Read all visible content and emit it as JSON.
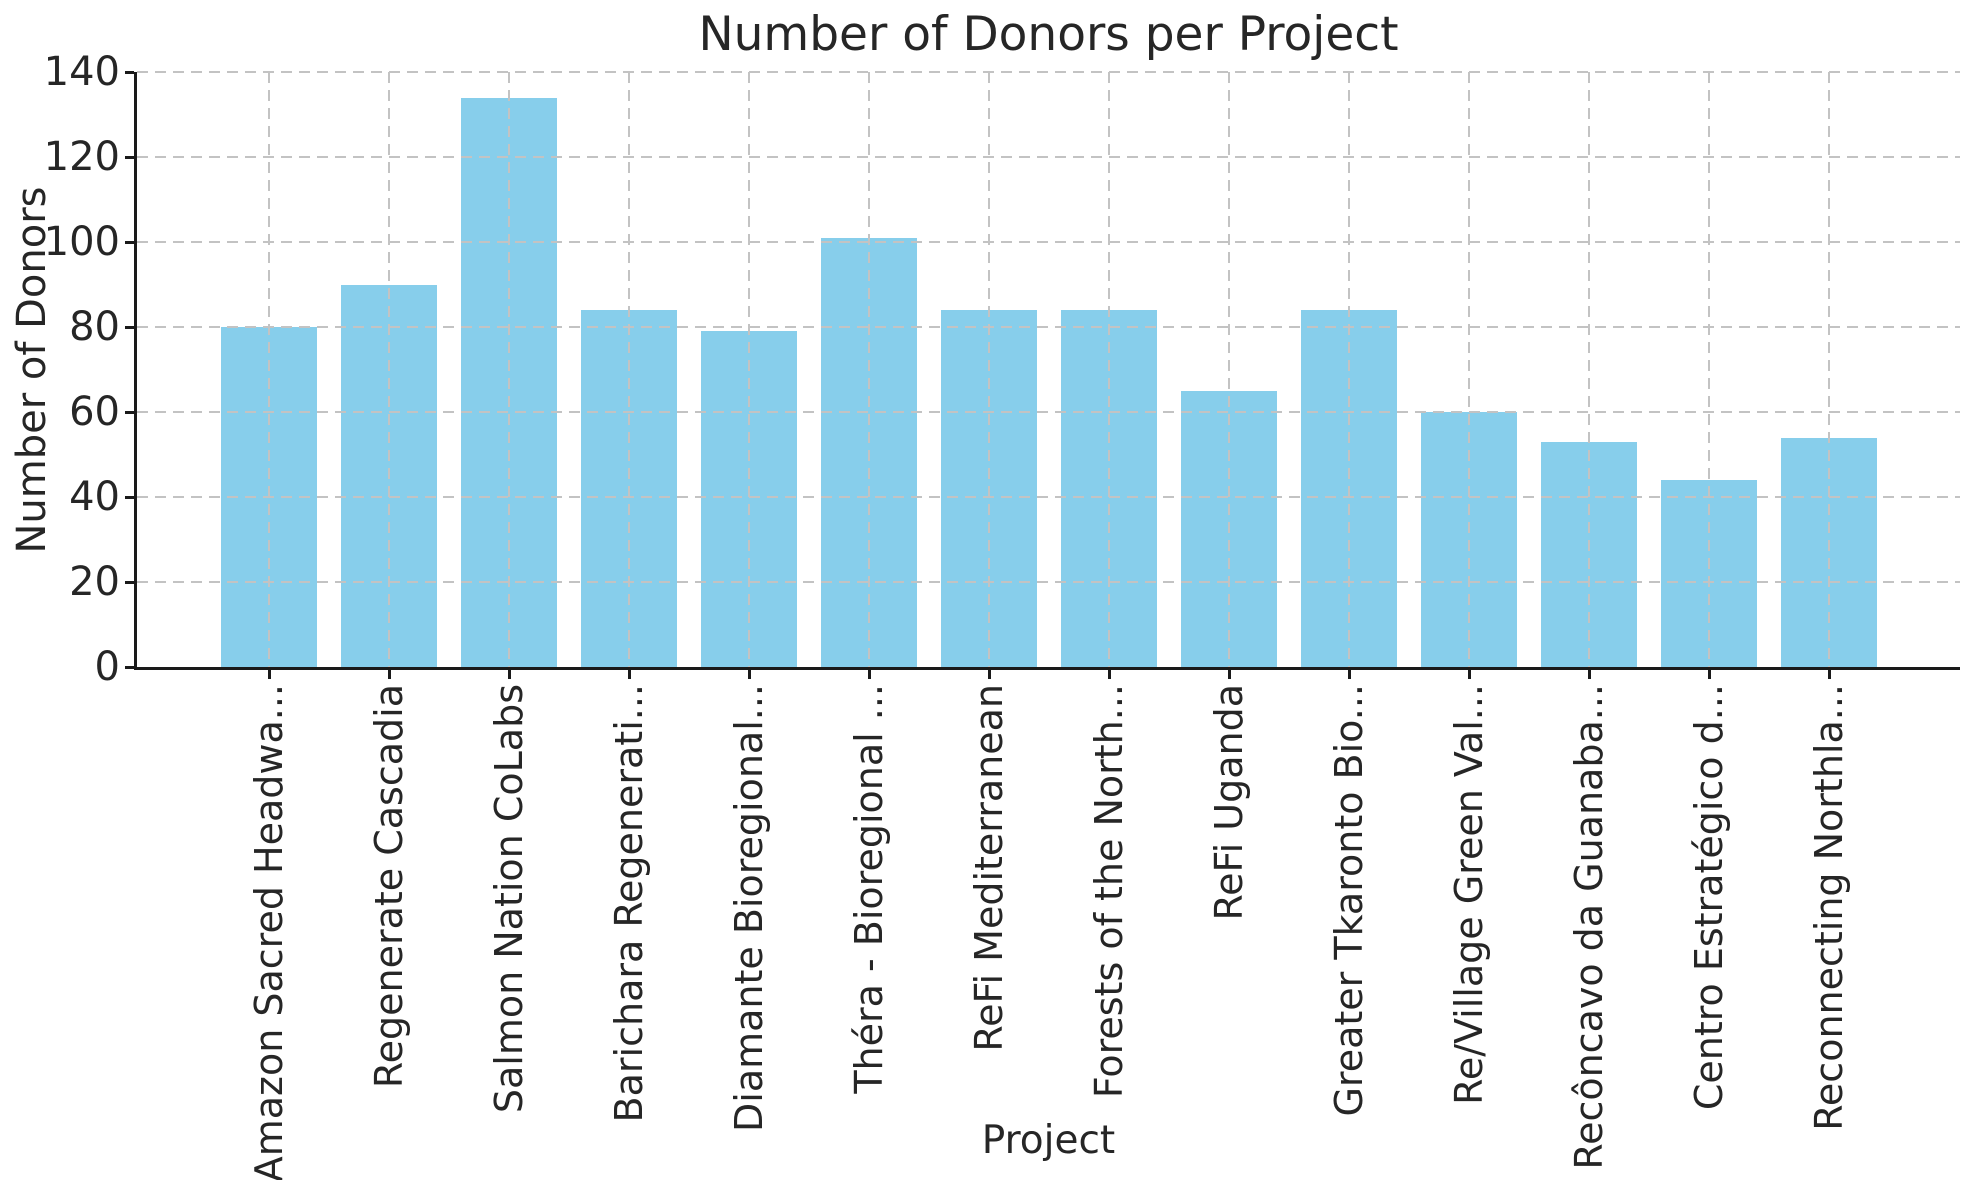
{
  "chart_data": {
    "type": "bar",
    "title": "Number of Donors per Project",
    "xlabel": "Project",
    "ylabel": "Number of Donors",
    "categories": [
      "Amazon Sacred Headwa...",
      "Regenerate Cascadia",
      "Salmon Nation CoLabs",
      "Barichara Regenerati...",
      "Diamante Bioregional...",
      "Théra - Bioregional ...",
      "ReFi Mediterranean",
      "Forests of the North...",
      "ReFi Uganda",
      "Greater Tkaronto Bio...",
      "Re/Village Green Val...",
      "Recôncavo da Guanaba...",
      "Centro Estratégico d...",
      "Reconnecting Northla..."
    ],
    "values": [
      80,
      90,
      134,
      84,
      79,
      101,
      84,
      84,
      65,
      84,
      60,
      53,
      44,
      54
    ],
    "ylim": [
      0,
      140
    ],
    "yticks": [
      0,
      20,
      40,
      60,
      80,
      100,
      120,
      140
    ],
    "grid": true,
    "grid_style": "dashed",
    "legend": "none",
    "bar_color": "#87CEEB",
    "grid_color": "#c3c3c3",
    "axis_color": "#1a1a1a",
    "text_color": "#262626"
  }
}
